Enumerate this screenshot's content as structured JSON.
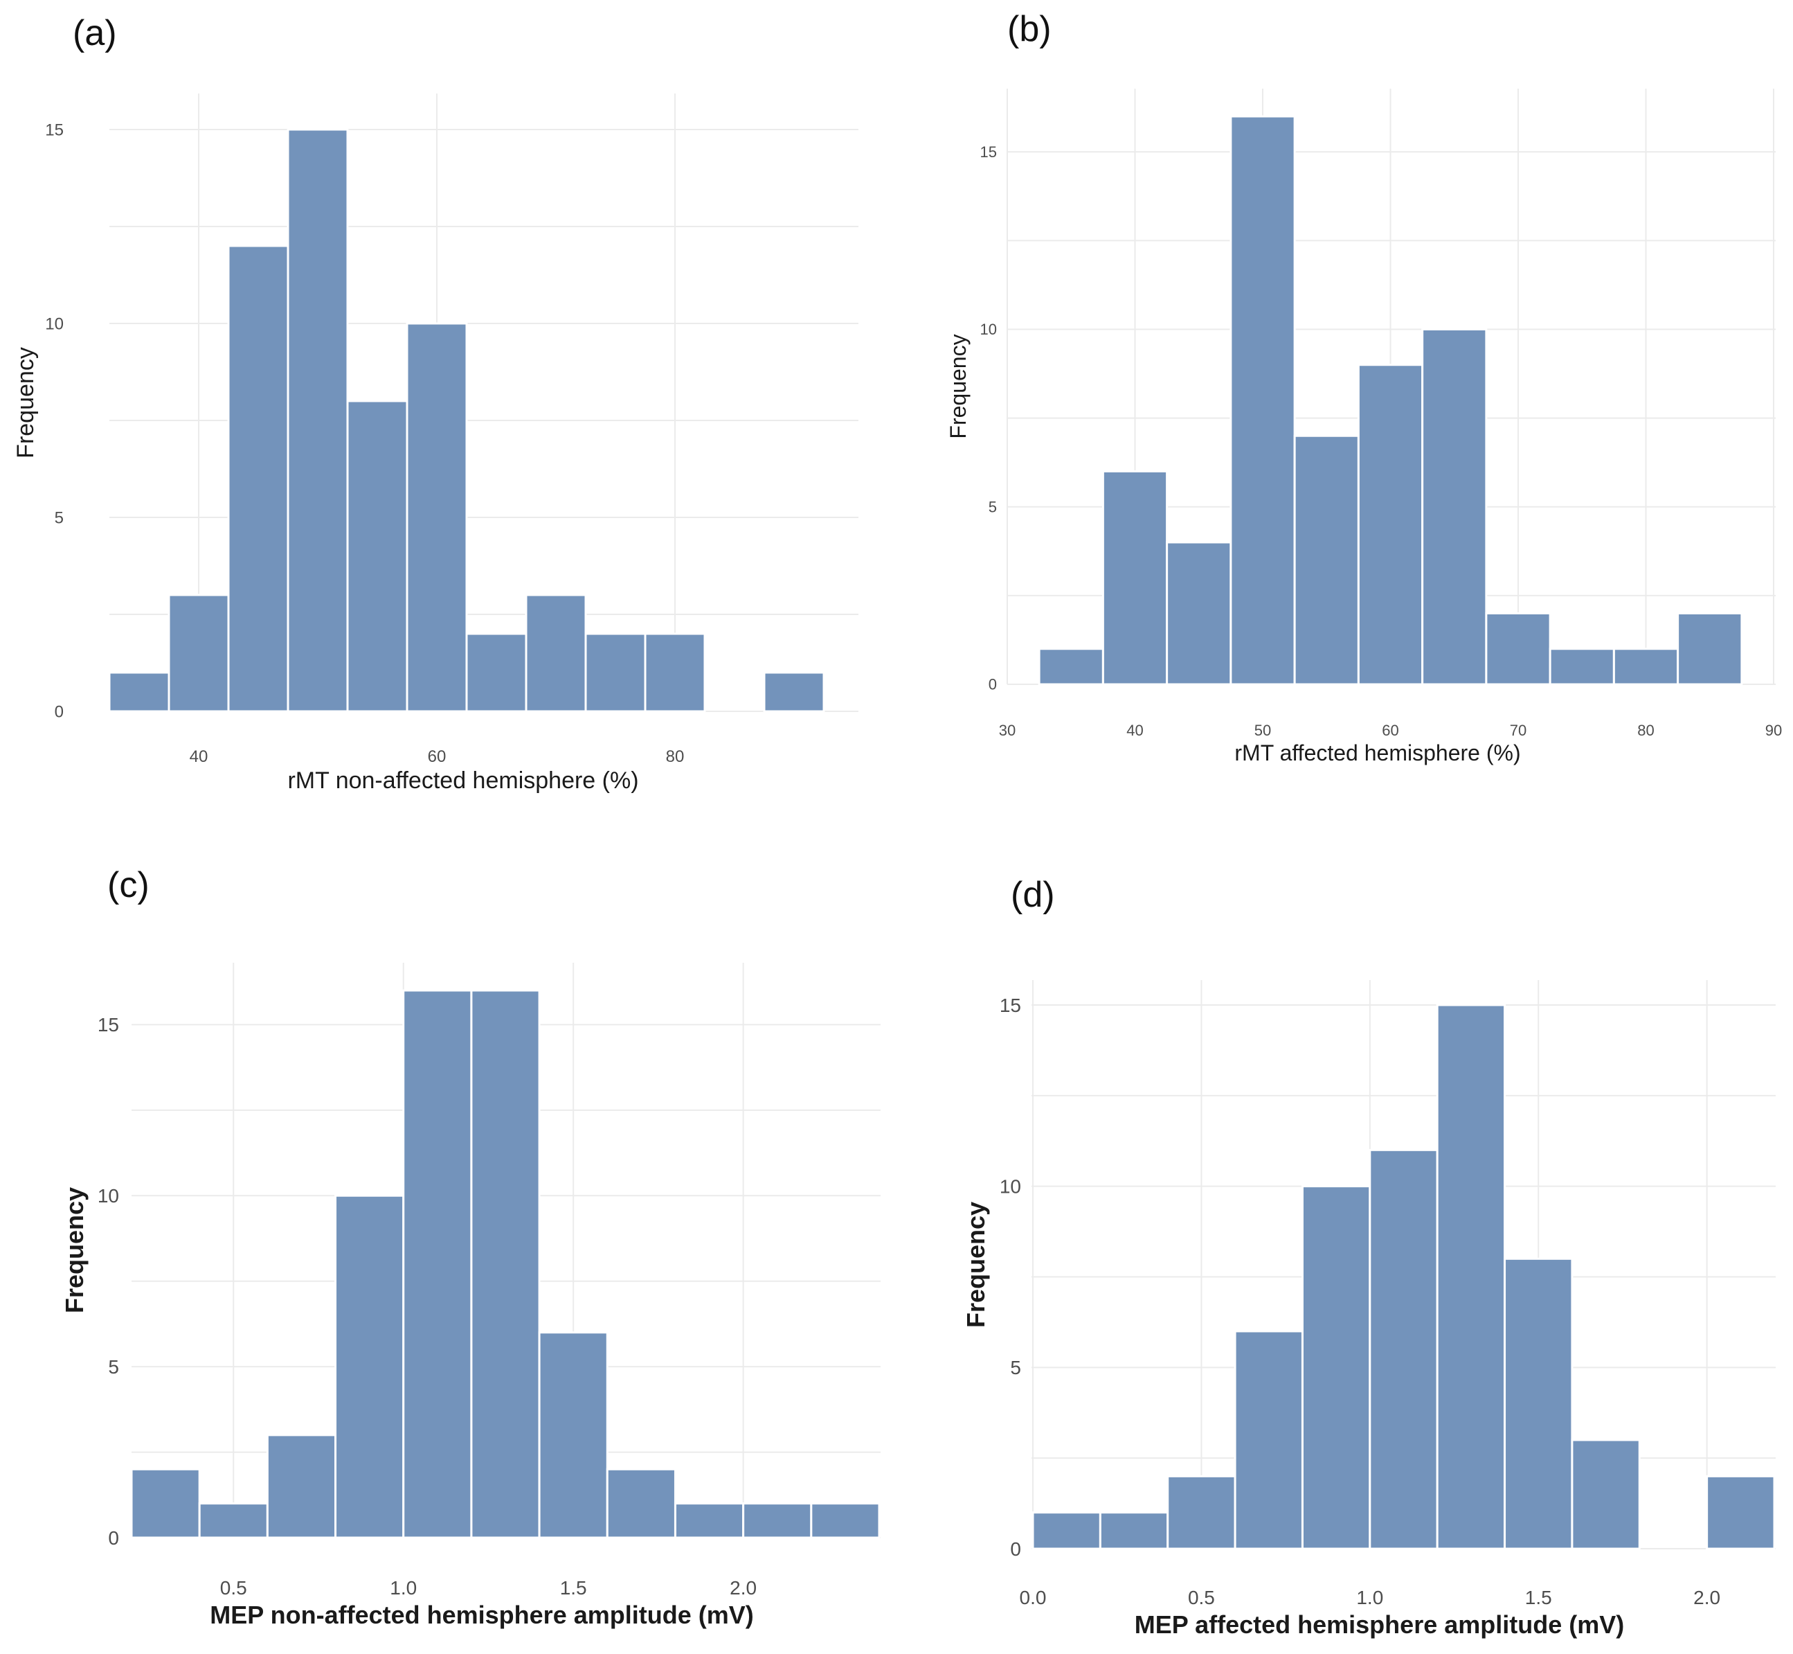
{
  "chart_data": [
    {
      "type": "bar",
      "panel": "(a)",
      "xlabel": "rMT non-affected hemisphere (%)",
      "ylabel": "Frequency",
      "xlim": [
        32.5,
        92.5
      ],
      "ylim": [
        0,
        15
      ],
      "xticks": [
        40,
        60,
        80
      ],
      "yticks": [
        0,
        5,
        10,
        15
      ],
      "bins": [
        {
          "x0": 32.5,
          "x1": 37.5,
          "count": 1
        },
        {
          "x0": 37.5,
          "x1": 42.5,
          "count": 3
        },
        {
          "x0": 42.5,
          "x1": 47.5,
          "count": 12
        },
        {
          "x0": 47.5,
          "x1": 52.5,
          "count": 15
        },
        {
          "x0": 52.5,
          "x1": 57.5,
          "count": 8
        },
        {
          "x0": 57.5,
          "x1": 62.5,
          "count": 10
        },
        {
          "x0": 62.5,
          "x1": 67.5,
          "count": 2
        },
        {
          "x0": 67.5,
          "x1": 72.5,
          "count": 3
        },
        {
          "x0": 72.5,
          "x1": 77.5,
          "count": 2
        },
        {
          "x0": 77.5,
          "x1": 82.5,
          "count": 2
        },
        {
          "x0": 82.5,
          "x1": 87.5,
          "count": 0
        },
        {
          "x0": 87.5,
          "x1": 92.5,
          "count": 1
        }
      ]
    },
    {
      "type": "bar",
      "panel": "(b)",
      "xlabel": "rMT affected hemisphere (%)",
      "ylabel": "Frequency",
      "xlim": [
        30,
        90
      ],
      "ylim": [
        0,
        16
      ],
      "xticks": [
        30,
        40,
        50,
        60,
        70,
        80,
        90
      ],
      "yticks": [
        0,
        5,
        10,
        15
      ],
      "bins": [
        {
          "x0": 32.5,
          "x1": 37.5,
          "count": 1
        },
        {
          "x0": 37.5,
          "x1": 42.5,
          "count": 6
        },
        {
          "x0": 42.5,
          "x1": 47.5,
          "count": 4
        },
        {
          "x0": 47.5,
          "x1": 52.5,
          "count": 16
        },
        {
          "x0": 52.5,
          "x1": 57.5,
          "count": 7
        },
        {
          "x0": 57.5,
          "x1": 62.5,
          "count": 9
        },
        {
          "x0": 62.5,
          "x1": 67.5,
          "count": 10
        },
        {
          "x0": 67.5,
          "x1": 72.5,
          "count": 2
        },
        {
          "x0": 72.5,
          "x1": 77.5,
          "count": 1
        },
        {
          "x0": 77.5,
          "x1": 82.5,
          "count": 1
        },
        {
          "x0": 82.5,
          "x1": 87.5,
          "count": 2
        }
      ]
    },
    {
      "type": "bar",
      "panel": "(c)",
      "xlabel": "MEP non-affected hemisphere amplitude (mV)",
      "ylabel": "Frequency",
      "xlim": [
        0.2,
        2.4
      ],
      "ylim": [
        0,
        16
      ],
      "xticks": [
        0.5,
        1.0,
        1.5,
        2.0
      ],
      "yticks": [
        0,
        5,
        10,
        15
      ],
      "bins": [
        {
          "x0": 0.2,
          "x1": 0.4,
          "count": 2
        },
        {
          "x0": 0.4,
          "x1": 0.6,
          "count": 1
        },
        {
          "x0": 0.6,
          "x1": 0.8,
          "count": 3
        },
        {
          "x0": 0.8,
          "x1": 1.0,
          "count": 10
        },
        {
          "x0": 1.0,
          "x1": 1.2,
          "count": 16
        },
        {
          "x0": 1.2,
          "x1": 1.4,
          "count": 16
        },
        {
          "x0": 1.4,
          "x1": 1.6,
          "count": 6
        },
        {
          "x0": 1.6,
          "x1": 1.8,
          "count": 2
        },
        {
          "x0": 1.8,
          "x1": 2.0,
          "count": 1
        },
        {
          "x0": 2.0,
          "x1": 2.2,
          "count": 1
        },
        {
          "x0": 2.2,
          "x1": 2.4,
          "count": 1
        }
      ]
    },
    {
      "type": "bar",
      "panel": "(d)",
      "xlabel": "MEP affected hemisphere amplitude (mV)",
      "ylabel": "Frequency",
      "xlim": [
        0.0,
        2.2
      ],
      "ylim": [
        0,
        15
      ],
      "xticks": [
        0.0,
        0.5,
        1.0,
        1.5,
        2.0
      ],
      "yticks": [
        0,
        5,
        10,
        15
      ],
      "bins": [
        {
          "x0": 0.0,
          "x1": 0.2,
          "count": 1
        },
        {
          "x0": 0.2,
          "x1": 0.4,
          "count": 1
        },
        {
          "x0": 0.4,
          "x1": 0.6,
          "count": 2
        },
        {
          "x0": 0.6,
          "x1": 0.8,
          "count": 6
        },
        {
          "x0": 0.8,
          "x1": 1.0,
          "count": 10
        },
        {
          "x0": 1.0,
          "x1": 1.2,
          "count": 11
        },
        {
          "x0": 1.2,
          "x1": 1.4,
          "count": 15
        },
        {
          "x0": 1.4,
          "x1": 1.6,
          "count": 8
        },
        {
          "x0": 1.6,
          "x1": 1.8,
          "count": 3
        },
        {
          "x0": 1.8,
          "x1": 2.0,
          "count": 0
        },
        {
          "x0": 2.0,
          "x1": 2.2,
          "count": 2
        }
      ]
    }
  ]
}
